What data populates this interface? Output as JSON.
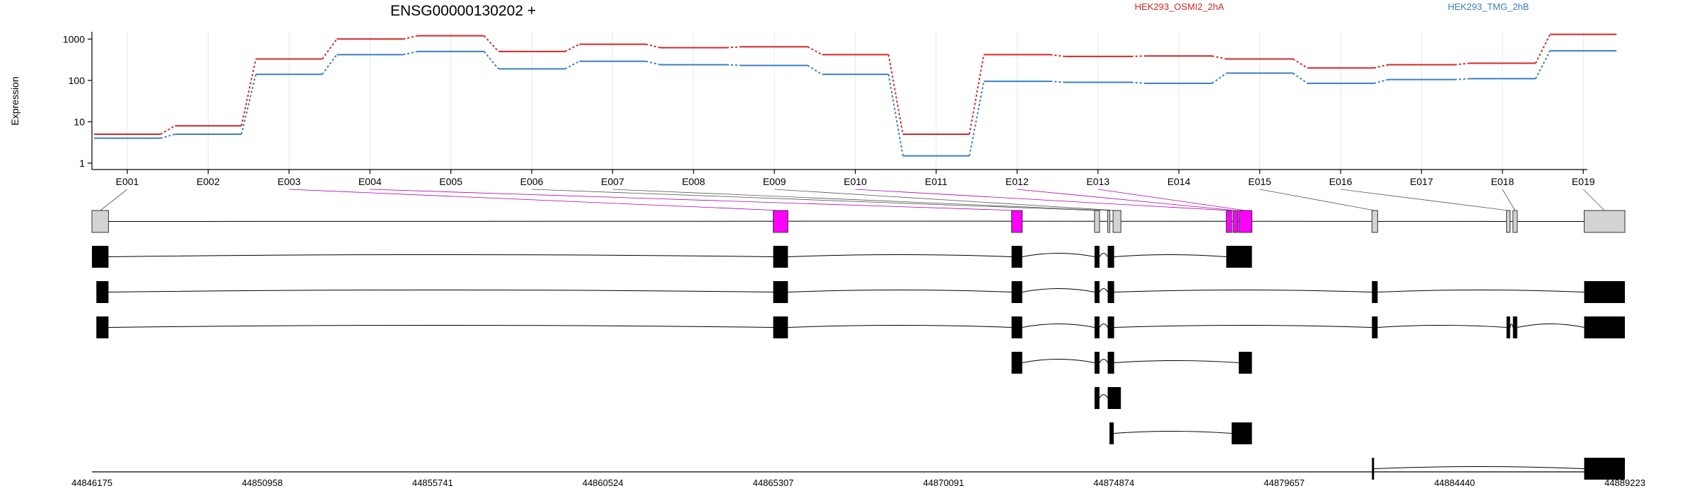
{
  "chart_data": {
    "type": "line",
    "title": "ENSG00000130202 +",
    "ylabel": "Expression",
    "y_scale": "log",
    "ylim": [
      0.7,
      1500
    ],
    "y_ticks": [
      "1",
      "10",
      "100",
      "1000"
    ],
    "grid": true,
    "legend_position": "top-right",
    "categories": [
      "E001",
      "E002",
      "E003",
      "E004",
      "E005",
      "E006",
      "E007",
      "E008",
      "E009",
      "E010",
      "E011",
      "E012",
      "E013",
      "E014",
      "E015",
      "E016",
      "E017",
      "E018",
      "E019"
    ],
    "series": [
      {
        "name": "HEK293_OSMI2_2hA",
        "color": "#d62728",
        "values": [
          5,
          8,
          330,
          1000,
          1200,
          500,
          750,
          620,
          650,
          420,
          5,
          420,
          380,
          390,
          330,
          200,
          240,
          260,
          1300
        ]
      },
      {
        "name": "HEK293_TMG_2hB",
        "color": "#3a7fc1",
        "values": [
          4,
          5,
          140,
          420,
          500,
          190,
          290,
          240,
          230,
          140,
          1.5,
          95,
          90,
          85,
          150,
          85,
          105,
          110,
          520
        ]
      }
    ],
    "genomic_ticks": [
      "44846175",
      "44850958",
      "44855741",
      "44860524",
      "44865307",
      "44870091",
      "44874874",
      "44879657",
      "44884440",
      "44889223"
    ],
    "genome_start": 44846175,
    "genome_end": 44889223,
    "gene_model_exons": [
      {
        "start": 44846175,
        "end": 44846640,
        "color": "#d3d3d3"
      },
      {
        "start": 44865307,
        "end": 44865720,
        "color": "#ff00ff"
      },
      {
        "start": 44872000,
        "end": 44872300,
        "color": "#ff00ff"
      },
      {
        "start": 44874330,
        "end": 44874470,
        "color": "#d3d3d3"
      },
      {
        "start": 44874700,
        "end": 44874760,
        "color": "#d3d3d3"
      },
      {
        "start": 44874850,
        "end": 44875070,
        "color": "#d3d3d3"
      },
      {
        "start": 44878030,
        "end": 44878180,
        "color": "#ff00ff"
      },
      {
        "start": 44878220,
        "end": 44878350,
        "color": "#ff00ff"
      },
      {
        "start": 44878380,
        "end": 44878750,
        "color": "#ff00ff"
      },
      {
        "start": 44882120,
        "end": 44882280,
        "color": "#d3d3d3"
      },
      {
        "start": 44885900,
        "end": 44886000,
        "color": "#d3d3d3"
      },
      {
        "start": 44886080,
        "end": 44886200,
        "color": "#d3d3d3"
      },
      {
        "start": 44888080,
        "end": 44889223,
        "color": "#d3d3d3"
      }
    ],
    "transcripts": [
      {
        "exons": [
          [
            44846175,
            44846640
          ],
          [
            44865307,
            44865720
          ],
          [
            44872000,
            44872300
          ],
          [
            44874330,
            44874470
          ],
          [
            44874700,
            44874880
          ],
          [
            44878030,
            44878750
          ]
        ]
      },
      {
        "exons": [
          [
            44846300,
            44846640
          ],
          [
            44865307,
            44865720
          ],
          [
            44872000,
            44872300
          ],
          [
            44874330,
            44874470
          ],
          [
            44874700,
            44874880
          ],
          [
            44882120,
            44882280
          ],
          [
            44888080,
            44889223
          ]
        ]
      },
      {
        "exons": [
          [
            44846300,
            44846640
          ],
          [
            44865307,
            44865720
          ],
          [
            44872000,
            44872300
          ],
          [
            44874330,
            44874470
          ],
          [
            44874700,
            44874880
          ],
          [
            44882120,
            44882280
          ],
          [
            44885900,
            44886000
          ],
          [
            44886080,
            44886200
          ],
          [
            44888080,
            44889223
          ]
        ]
      },
      {
        "exons": [
          [
            44872000,
            44872300
          ],
          [
            44874330,
            44874470
          ],
          [
            44874700,
            44874880
          ],
          [
            44878380,
            44878750
          ]
        ]
      },
      {
        "exons": [
          [
            44874330,
            44874470
          ],
          [
            44874700,
            44875070
          ]
        ]
      },
      {
        "exons": [
          [
            44874750,
            44874870
          ],
          [
            44878180,
            44878750
          ]
        ]
      },
      {
        "exons": [
          [
            44882120,
            44882160
          ],
          [
            44888080,
            44889223
          ]
        ]
      }
    ]
  }
}
